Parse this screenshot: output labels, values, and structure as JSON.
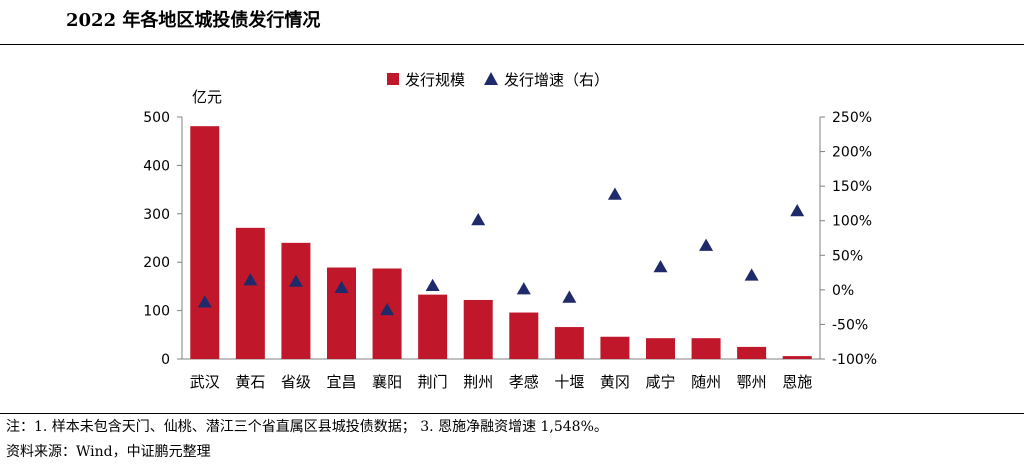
{
  "title": "2022 年各地区城投债发行情况",
  "notes": {
    "line1": "注：1. 样本未包含天门、仙桃、潜江三个省直属区县城投债数据； 3. 恩施净融资增速 1,548%。",
    "line2": "资料来源：Wind，中证鹏元整理"
  },
  "colors": {
    "bar": "#C0182A",
    "marker": "#1F2A6B",
    "axis": "#808080"
  },
  "chart_data": {
    "type": "bar",
    "categories": [
      "武汉",
      "黄石",
      "省级",
      "宜昌",
      "襄阳",
      "荆门",
      "荆州",
      "孝感",
      "十堰",
      "黄冈",
      "咸宁",
      "随州",
      "鄂州",
      "恩施"
    ],
    "series": [
      {
        "name": "发行规模",
        "type": "bar",
        "axis": "left",
        "values": [
          481,
          271,
          240,
          189,
          187,
          133,
          122,
          96,
          66,
          46,
          43,
          43,
          25,
          6
        ]
      },
      {
        "name": "发行增速（右）",
        "type": "scatter",
        "marker": "triangle",
        "axis": "right",
        "values": [
          -18,
          14,
          12,
          3,
          -29,
          6,
          101,
          1,
          -11,
          138,
          33,
          64,
          21,
          114
        ]
      }
    ],
    "ylabel_left": "亿元",
    "ylim_left": [
      0,
      500
    ],
    "yticks_left": [
      "0",
      "100",
      "200",
      "300",
      "400",
      "500"
    ],
    "ylim_right": [
      -100,
      250
    ],
    "yticks_right": [
      "-100%",
      "-50%",
      "0%",
      "50%",
      "100%",
      "150%",
      "200%",
      "250%"
    ],
    "grid": false,
    "legend_position": "top-center"
  }
}
